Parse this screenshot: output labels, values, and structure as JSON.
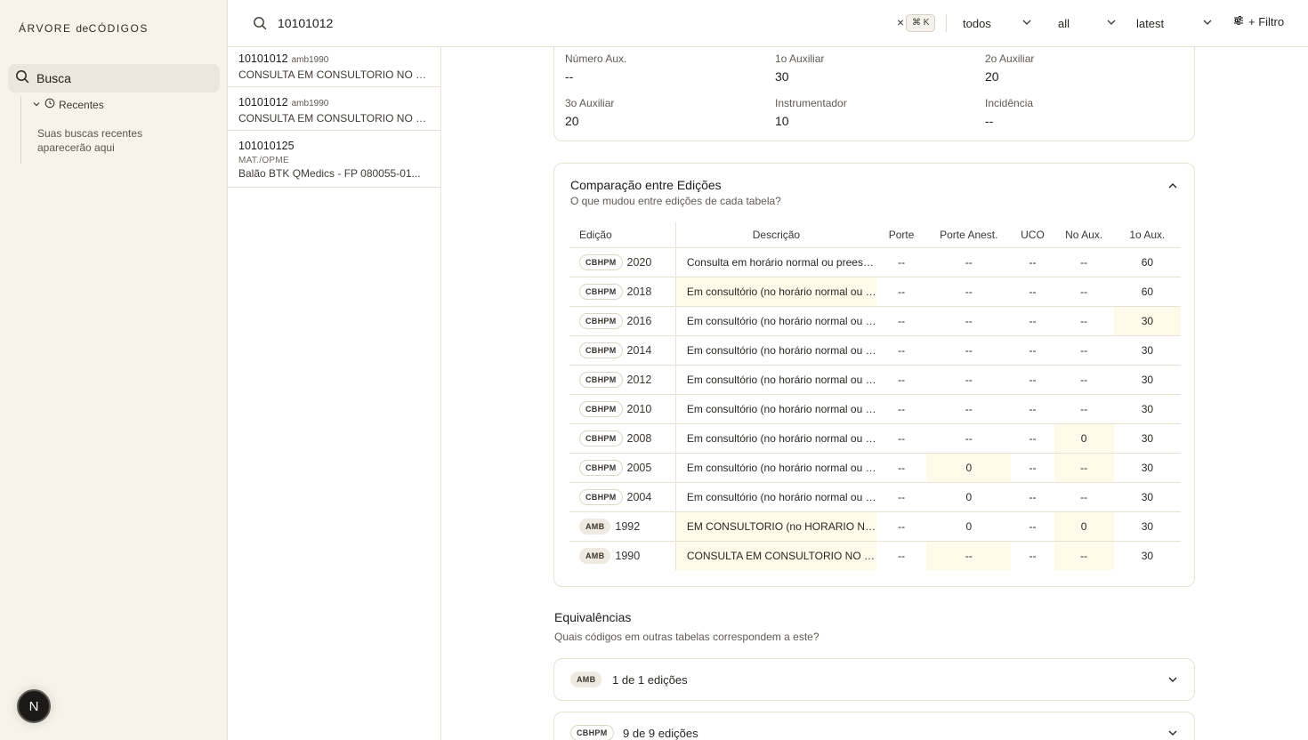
{
  "sidebar": {
    "brand_left": "ÁRVORE",
    "brand_mid": "de",
    "brand_right": "CÓDIGOS",
    "nav_busca": "Busca",
    "recent_label": "Recentes",
    "recent_empty": "Suas buscas recentes aparecerão aqui",
    "avatar_letter": "N"
  },
  "topbar": {
    "search_value": "10101012",
    "clear": "×",
    "shortcut": "⌘ K",
    "select_tabela": "todos",
    "select_tipo": "all",
    "select_versao": "latest",
    "filter_label": "+ Filtro"
  },
  "results": [
    {
      "code": "10101012",
      "tag": "amb1990",
      "sub": "",
      "desc": "CONSULTA EM CONSULTORIO NO HORARIO NORMAL"
    },
    {
      "code": "10101012",
      "tag": "amb1990",
      "sub": "",
      "desc": "CONSULTA EM CONSULTORIO NO HORARIO NORMAL"
    },
    {
      "code": "101010125",
      "tag": "",
      "sub": "MAT./OPME",
      "desc": "Balão BTK QMedics - FP 080055-01..."
    }
  ],
  "details": {
    "numero_aux_label": "Número Aux.",
    "numero_aux_value": "--",
    "aux1_label": "1o Auxiliar",
    "aux1_value": "30",
    "aux2_label": "2o Auxiliar",
    "aux2_value": "20",
    "aux3_label": "3o Auxiliar",
    "aux3_value": "20",
    "instrumentador_label": "Instrumentador",
    "instrumentador_value": "10",
    "incidencia_label": "Incidência",
    "incidencia_value": "--"
  },
  "comparison": {
    "title": "Comparação entre Edições",
    "subtitle": "O que mudou entre edições de cada tabela?",
    "headers": [
      "Edição",
      "Descrição",
      "Porte",
      "Porte Anest.",
      "UCO",
      "No Aux.",
      "1o Aux."
    ],
    "rows": [
      {
        "badge": "CBHPM",
        "year": "2020",
        "desc": "Consulta em horário normal ou preestabelecido",
        "porte": "--",
        "porte_anest": "--",
        "uco": "--",
        "no_aux": "--",
        "aux1": "60"
      },
      {
        "badge": "CBHPM",
        "year": "2018",
        "desc": "Em consultório (no horário normal ou preestabelecido)",
        "porte": "--",
        "porte_anest": "--",
        "uco": "--",
        "no_aux": "--",
        "aux1": "60"
      },
      {
        "badge": "CBHPM",
        "year": "2016",
        "desc": "Em consultório (no horário normal ou preestabelecido)",
        "porte": "--",
        "porte_anest": "--",
        "uco": "--",
        "no_aux": "--",
        "aux1": "30"
      },
      {
        "badge": "CBHPM",
        "year": "2014",
        "desc": "Em consultório (no horário normal ou preestabelecido)",
        "porte": "--",
        "porte_anest": "--",
        "uco": "--",
        "no_aux": "--",
        "aux1": "30"
      },
      {
        "badge": "CBHPM",
        "year": "2012",
        "desc": "Em consultório (no horário normal ou preestabelecido)",
        "porte": "--",
        "porte_anest": "--",
        "uco": "--",
        "no_aux": "--",
        "aux1": "30"
      },
      {
        "badge": "CBHPM",
        "year": "2010",
        "desc": "Em consultório (no horário normal ou preestabelecido)",
        "porte": "--",
        "porte_anest": "--",
        "uco": "--",
        "no_aux": "--",
        "aux1": "30"
      },
      {
        "badge": "CBHPM",
        "year": "2008",
        "desc": "Em consultório (no horário normal ou preestabelecido)",
        "porte": "--",
        "porte_anest": "--",
        "uco": "--",
        "no_aux": "0",
        "aux1": "30"
      },
      {
        "badge": "CBHPM",
        "year": "2005",
        "desc": "Em consultório (no horário normal ou preestabelecido)",
        "porte": "--",
        "porte_anest": "0",
        "uco": "--",
        "no_aux": "--",
        "aux1": "30"
      },
      {
        "badge": "CBHPM",
        "year": "2004",
        "desc": "Em consultório (no horário normal ou preestabelecido)",
        "porte": "--",
        "porte_anest": "0",
        "uco": "--",
        "no_aux": "--",
        "aux1": "30"
      },
      {
        "badge": "AMB",
        "year": "1992",
        "desc": "EM CONSULTORIO (no HORARIO NORMAL ou PREESTABELECIDO)",
        "porte": "--",
        "porte_anest": "0",
        "uco": "--",
        "no_aux": "0",
        "aux1": "30"
      },
      {
        "badge": "AMB",
        "year": "1990",
        "desc": "CONSULTA EM CONSULTORIO NO HORARIO NORMAL",
        "porte": "--",
        "porte_anest": "--",
        "uco": "--",
        "no_aux": "--",
        "aux1": "30"
      }
    ]
  },
  "equivalencias": {
    "title": "Equivalências",
    "subtitle": "Quais códigos em outras tabelas correspondem a este?",
    "items": [
      {
        "badge": "AMB",
        "text": "1 de 1 edições"
      },
      {
        "badge": "CBHPM",
        "text": "9 de 9 edições"
      }
    ]
  },
  "colors": {
    "sidebar_bg": "#f7f3eb",
    "highlight": "#fefaea",
    "border": "#e7e1d6"
  }
}
